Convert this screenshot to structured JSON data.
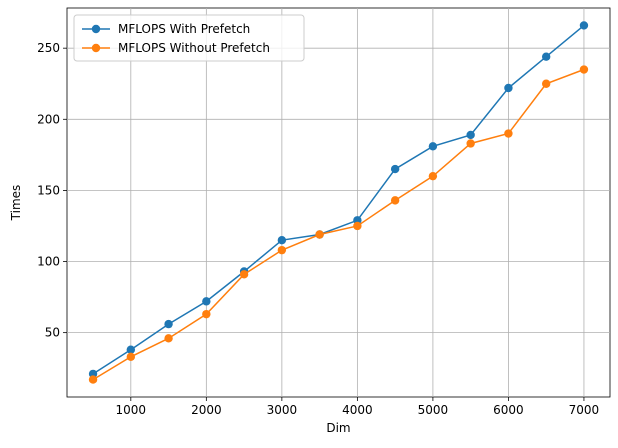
{
  "chart_data": {
    "type": "line",
    "title": "",
    "xlabel": "Dim",
    "ylabel": "Times",
    "x": [
      500,
      1000,
      1500,
      2000,
      2500,
      3000,
      3500,
      4000,
      4500,
      5000,
      5500,
      6000,
      6500,
      7000
    ],
    "series": [
      {
        "name": "MFLOPS With Prefetch",
        "color": "#1f77b4",
        "values": [
          21,
          38,
          56,
          72,
          93,
          115,
          119,
          129,
          165,
          181,
          189,
          222,
          244,
          266
        ]
      },
      {
        "name": "MFLOPS Without Prefetch",
        "color": "#ff7f0e",
        "values": [
          17,
          33,
          46,
          63,
          91,
          108,
          119,
          125,
          143,
          160,
          183,
          190,
          225,
          235
        ]
      }
    ],
    "xlim": [
      155,
      7345
    ],
    "ylim": [
      4.75,
      278.25
    ],
    "xticks": [
      1000,
      2000,
      3000,
      4000,
      5000,
      6000,
      7000
    ],
    "xtick_labels": [
      "1000",
      "2000",
      "3000",
      "4000",
      "5000",
      "6000",
      "7000"
    ],
    "yticks": [
      50,
      100,
      150,
      200,
      250
    ],
    "ytick_labels": [
      "50",
      "100",
      "150",
      "200",
      "250"
    ],
    "grid": true,
    "legend_position": "top-left"
  }
}
